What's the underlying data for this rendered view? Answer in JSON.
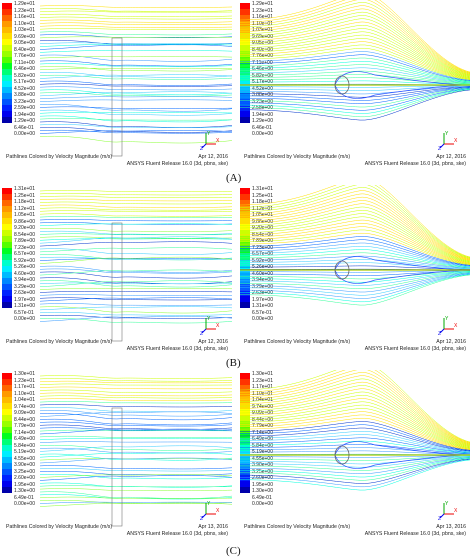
{
  "colorbar": [
    "#ff0000",
    "#ff3300",
    "#ff6600",
    "#ff9900",
    "#ffbb00",
    "#ffdd00",
    "#ffff00",
    "#ccff00",
    "#99ff00",
    "#55ff00",
    "#00ff22",
    "#00ff77",
    "#00ffcc",
    "#00eeff",
    "#00bbff",
    "#0088ff",
    "#0055ff",
    "#0022ff",
    "#0000ee",
    "#0000aa"
  ],
  "panels": [
    {
      "id": "A-left",
      "ticks": [
        "1.29e+01",
        "1.23e+01",
        "1.16e+01",
        "1.10e+01",
        "1.03e+01",
        "9.69e+00",
        "9.05e+00",
        "8.40e+00",
        "7.76e+00",
        "7.11e+00",
        "6.46e+00",
        "5.82e+00",
        "5.17e+00",
        "4.52e+00",
        "3.88e+00",
        "3.23e+00",
        "2.59e+00",
        "1.94e+00",
        "1.29e+00",
        "6.46e-01",
        "0.00e+00"
      ],
      "footer_left": "Pathlines Colored by Velocity Magnitude (m/s)",
      "footer_date": "Apr 12, 2016",
      "footer_right": "ANSYS Fluent Release 16.0 (3d, pbns, ske)"
    },
    {
      "id": "A-right",
      "ticks": [
        "1.29e+01",
        "1.23e+01",
        "1.16e+01",
        "1.10e+01",
        "1.03e+01",
        "9.69e+00",
        "9.05e+00",
        "8.40e+00",
        "7.76e+00",
        "7.11e+00",
        "6.46e+00",
        "5.82e+00",
        "5.17e+00",
        "4.52e+00",
        "3.88e+00",
        "3.23e+00",
        "2.58e+00",
        "1.94e+00",
        "1.29e+00",
        "6.46e-01",
        "0.00e+00"
      ],
      "footer_left": "Pathlines Colored by Velocity Magnitude (m/s)",
      "footer_date": "Apr 12, 2016",
      "footer_right": "ANSYS Fluent Release 16.0 (3d, pbns, ske)"
    },
    {
      "id": "B-left",
      "ticks": [
        "1.31e+01",
        "1.25e+01",
        "1.18e+01",
        "1.12e+01",
        "1.05e+01",
        "9.86e+00",
        "9.20e+00",
        "8.54e+00",
        "7.89e+00",
        "7.23e+00",
        "6.57e+00",
        "5.92e+00",
        "5.26e+00",
        "4.60e+00",
        "3.94e+00",
        "3.29e+00",
        "2.63e+00",
        "1.97e+00",
        "1.31e+00",
        "6.57e-01",
        "0.00e+00"
      ],
      "footer_left": "Pathlines Colored by Velocity Magnitude (m/s)",
      "footer_date": "Apr 12, 2016",
      "footer_right": "ANSYS Fluent Release 16.0 (3d, pbns, ske)"
    },
    {
      "id": "B-right",
      "ticks": [
        "1.31e+01",
        "1.25e+01",
        "1.18e+01",
        "1.12e+01",
        "1.05e+01",
        "9.86e+00",
        "9.20e+00",
        "8.54e+00",
        "7.89e+00",
        "7.23e+00",
        "6.57e+00",
        "5.92e+00",
        "5.26e+00",
        "4.60e+00",
        "3.94e+00",
        "3.29e+00",
        "2.63e+00",
        "1.97e+00",
        "1.31e+00",
        "6.57e-01",
        "0.00e+00"
      ],
      "footer_left": "Pathlines Colored by Velocity Magnitude (m/s)",
      "footer_date": "Apr 12, 2016",
      "footer_right": "ANSYS Fluent Release 16.0 (3d, pbns, ske)"
    },
    {
      "id": "C-left",
      "ticks": [
        "1.30e+01",
        "1.23e+01",
        "1.17e+01",
        "1.10e+01",
        "1.04e+01",
        "9.74e+00",
        "9.09e+00",
        "8.44e+00",
        "7.79e+00",
        "7.14e+00",
        "6.49e+00",
        "5.84e+00",
        "5.19e+00",
        "4.55e+00",
        "3.90e+00",
        "3.25e+00",
        "2.60e+00",
        "1.95e+00",
        "1.30e+00",
        "6.49e-01",
        "0.00e+00"
      ],
      "footer_left": "Pathlines Colored by Velocity Magnitude (m/s)",
      "footer_date": "Apr 13, 2016",
      "footer_right": "ANSYS Fluent Release 16.0 (3d, pbns, ske)"
    },
    {
      "id": "C-right",
      "ticks": [
        "1.30e+01",
        "1.23e+01",
        "1.17e+01",
        "1.10e+01",
        "1.04e+01",
        "9.74e+00",
        "9.09e+00",
        "8.44e+00",
        "7.79e+00",
        "7.14e+00",
        "6.49e+00",
        "5.84e+00",
        "5.19e+00",
        "4.55e+00",
        "3.90e+00",
        "3.25e+00",
        "2.60e+00",
        "1.95e+00",
        "1.30e+00",
        "6.49e-01",
        "0.00e+00"
      ],
      "footer_left": "Pathlines Colored by Velocity Magnitude (m/s)",
      "footer_date": "Apr 13, 2016",
      "footer_right": "ANSYS Fluent Release 16.0 (3d, pbns, ske)"
    }
  ],
  "labels": {
    "A": "(A)",
    "B": "(B)",
    "C": "(C)"
  },
  "axis_labels": {
    "x": "X",
    "y": "Y",
    "z": "Z"
  }
}
